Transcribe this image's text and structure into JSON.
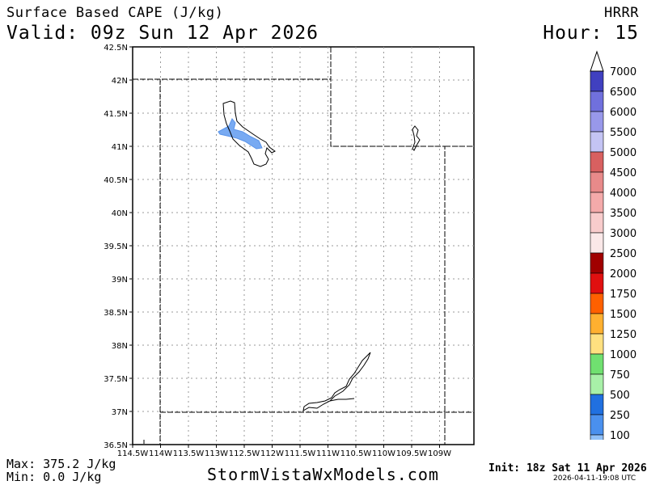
{
  "header": {
    "title_line1": "Surface Based CAPE (J/kg)",
    "title_line2": "Valid: 09z Sun 12 Apr 2026",
    "model": "HRRR",
    "forecast_hour": "Hour: 15"
  },
  "map": {
    "lon_labels": [
      "114.5W",
      "114W",
      "113.5W",
      "113W",
      "112.5W",
      "112W",
      "111.5W",
      "111W",
      "110.5W",
      "110W",
      "109.5W",
      "109W"
    ],
    "lat_labels": [
      "42.5N",
      "42N",
      "41.5N",
      "41N",
      "40.5N",
      "40N",
      "39.5N",
      "39N",
      "38.5N",
      "38N",
      "37.5N",
      "37N",
      "36.5N"
    ],
    "grid": true
  },
  "colorbar": {
    "labels": [
      "7000",
      "6500",
      "6000",
      "5500",
      "5000",
      "4500",
      "4000",
      "3500",
      "3000",
      "2500",
      "2000",
      "1750",
      "1500",
      "1250",
      "1000",
      "750",
      "500",
      "250",
      "100"
    ],
    "colors": [
      "#4040c0",
      "#7070dd",
      "#9898ea",
      "#c4c4f4",
      "#d86060",
      "#e88a8a",
      "#f4aaaa",
      "#f8cccc",
      "#fae8e8",
      "#a00000",
      "#e01010",
      "#ff6000",
      "#ffb030",
      "#ffe080",
      "#70e070",
      "#a8f0a8",
      "#2070e0",
      "#4a90ee",
      "#90c0f8"
    ]
  },
  "footer": {
    "max": "Max: 375.2 J/kg",
    "min": "Min: 0.0 J/kg",
    "site": "StormVistaWxModels.com",
    "init": "Init: 18z Sat 11 Apr 2026",
    "stamp": "2026-04-11-19:08 UTC"
  }
}
